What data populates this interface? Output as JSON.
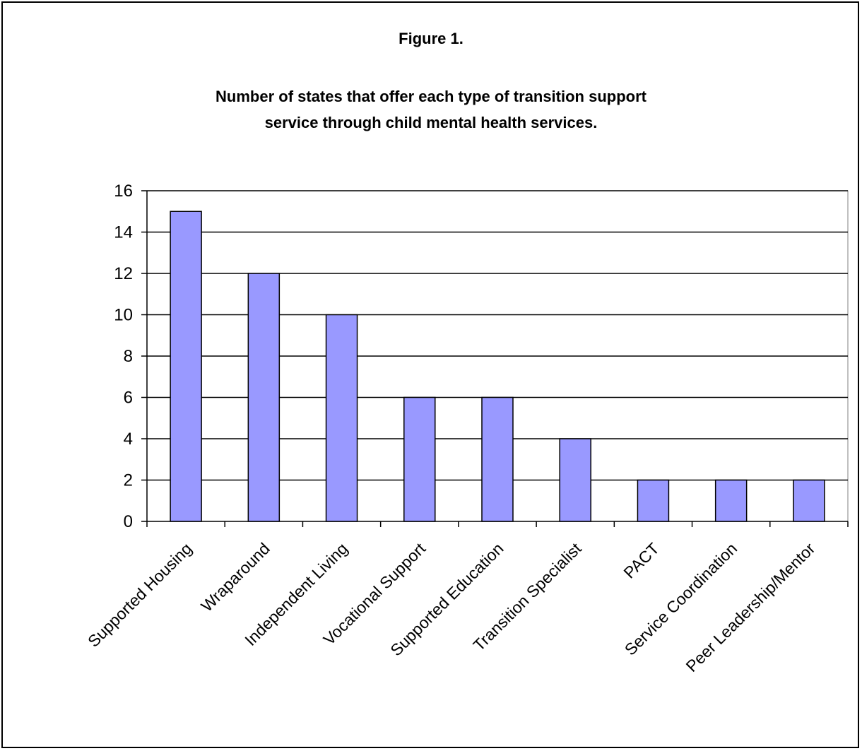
{
  "figure_label": "Figure 1.",
  "title_lines": [
    "Number of states that offer each type of transition support",
    "service through child mental health services."
  ],
  "colors": {
    "bar": "#9999ff",
    "bar_stroke": "#000000",
    "grid": "#000000",
    "axis": "#000000",
    "plot_border": "#808080"
  },
  "chart_data": {
    "type": "bar",
    "title": "Number of states that offer each type of transition support service through child mental health services.",
    "xlabel": "",
    "ylabel": "",
    "categories": [
      "Supported Housing",
      "Wraparound",
      "Independent Living",
      "Vocational Support",
      "Supported Education",
      "Transition Specialist",
      "PACT",
      "Service Coordination",
      "Peer Leadership/Mentor"
    ],
    "values": [
      15,
      12,
      10,
      6,
      6,
      4,
      2,
      2,
      2
    ],
    "ylim": [
      0,
      16
    ],
    "yticks": [
      "0",
      "2",
      "4",
      "6",
      "8",
      "10",
      "12",
      "14",
      "16"
    ],
    "grid": true,
    "legend": "none"
  }
}
